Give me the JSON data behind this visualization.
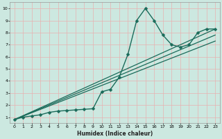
{
  "xlabel": "Humidex (Indice chaleur)",
  "ylabel": "",
  "xlim": [
    -0.5,
    23.5
  ],
  "ylim": [
    0.5,
    10.5
  ],
  "bg_color": "#cce8e0",
  "line_color": "#1a6b5a",
  "grid_color": "#e8b0b0",
  "spine_color": "#999999",
  "lines": [
    {
      "x": [
        0,
        1,
        2,
        3,
        4,
        5,
        6,
        7,
        8,
        9,
        10,
        11,
        12,
        13,
        14,
        15,
        16,
        17,
        18,
        19,
        20,
        21,
        22,
        23
      ],
      "y": [
        0.8,
        1.0,
        1.1,
        1.2,
        1.4,
        1.5,
        1.55,
        1.6,
        1.65,
        1.7,
        3.1,
        3.3,
        4.3,
        6.2,
        9.0,
        10.0,
        9.0,
        7.8,
        7.0,
        6.8,
        7.0,
        8.0,
        8.3,
        8.3
      ],
      "marker": "D",
      "markersize": 2.5,
      "linewidth": 1.0
    },
    {
      "x": [
        0,
        23
      ],
      "y": [
        0.8,
        8.3
      ],
      "marker": null,
      "linewidth": 0.9
    },
    {
      "x": [
        0,
        23
      ],
      "y": [
        0.8,
        7.8
      ],
      "marker": null,
      "linewidth": 0.9
    },
    {
      "x": [
        0,
        23
      ],
      "y": [
        0.8,
        7.3
      ],
      "marker": null,
      "linewidth": 0.9
    }
  ],
  "yticks": [
    1,
    2,
    3,
    4,
    5,
    6,
    7,
    8,
    9,
    10
  ],
  "xticks": [
    0,
    1,
    2,
    3,
    4,
    5,
    6,
    7,
    8,
    9,
    10,
    11,
    12,
    13,
    14,
    15,
    16,
    17,
    18,
    19,
    20,
    21,
    22,
    23
  ]
}
